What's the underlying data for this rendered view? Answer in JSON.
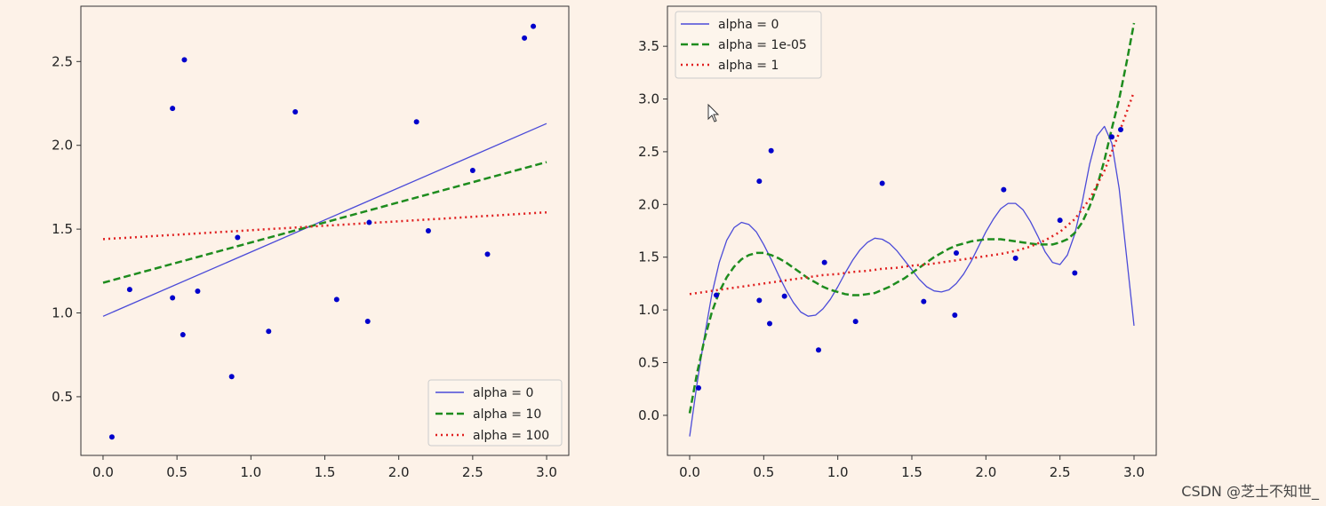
{
  "chart_data": [
    {
      "type": "line",
      "xlim": [
        -0.15,
        3.15
      ],
      "ylim": [
        0.15,
        2.83
      ],
      "xticks": [
        "0.0",
        "0.5",
        "1.0",
        "1.5",
        "2.0",
        "2.5",
        "3.0"
      ],
      "yticks": [
        "0.5",
        "1.0",
        "1.5",
        "2.0",
        "2.5"
      ],
      "legend_position": "lower-right",
      "scatter": {
        "x": [
          0.06,
          0.18,
          0.47,
          0.47,
          0.54,
          0.55,
          0.64,
          0.87,
          0.91,
          1.12,
          1.3,
          1.58,
          1.79,
          1.8,
          2.12,
          2.2,
          2.5,
          2.6,
          2.85,
          2.91
        ],
        "y": [
          0.26,
          1.14,
          2.22,
          1.09,
          0.87,
          2.51,
          1.13,
          0.62,
          1.45,
          0.89,
          2.2,
          1.08,
          0.95,
          1.54,
          2.14,
          1.49,
          1.85,
          1.35,
          2.64,
          2.71
        ],
        "color": "#0000cc"
      },
      "series": [
        {
          "name": "alpha = 0",
          "style": "solid",
          "color": "#4b4bd8",
          "x": [
            0.0,
            3.0
          ],
          "y": [
            0.98,
            2.13
          ]
        },
        {
          "name": "alpha = 10",
          "style": "dashed",
          "color": "#1e8c1e",
          "x": [
            0.0,
            3.0
          ],
          "y": [
            1.18,
            1.9
          ]
        },
        {
          "name": "alpha = 100",
          "style": "dotted",
          "color": "#e02020",
          "x": [
            0.0,
            3.0
          ],
          "y": [
            1.44,
            1.6
          ]
        }
      ]
    },
    {
      "type": "line",
      "xlim": [
        -0.15,
        3.15
      ],
      "ylim": [
        -0.38,
        3.88
      ],
      "xticks": [
        "0.0",
        "0.5",
        "1.0",
        "1.5",
        "2.0",
        "2.5",
        "3.0"
      ],
      "yticks": [
        "0.0",
        "0.5",
        "1.0",
        "1.5",
        "2.0",
        "2.5",
        "3.0",
        "3.5"
      ],
      "legend_position": "upper-left",
      "scatter": {
        "x": [
          0.06,
          0.18,
          0.47,
          0.47,
          0.54,
          0.55,
          0.64,
          0.87,
          0.91,
          1.12,
          1.3,
          1.58,
          1.79,
          1.8,
          2.12,
          2.2,
          2.5,
          2.6,
          2.85,
          2.91
        ],
        "y": [
          0.26,
          1.14,
          2.22,
          1.09,
          0.87,
          2.51,
          1.13,
          0.62,
          1.45,
          0.89,
          2.2,
          1.08,
          0.95,
          1.54,
          2.14,
          1.49,
          1.85,
          1.35,
          2.64,
          2.71
        ],
        "color": "#0000cc"
      },
      "series": [
        {
          "name": "alpha = 0",
          "style": "solid",
          "color": "#4b4bd8",
          "x": [
            0.0,
            0.05,
            0.1,
            0.15,
            0.2,
            0.25,
            0.3,
            0.35,
            0.4,
            0.45,
            0.5,
            0.55,
            0.6,
            0.65,
            0.7,
            0.75,
            0.8,
            0.85,
            0.9,
            0.95,
            1.0,
            1.05,
            1.1,
            1.15,
            1.2,
            1.25,
            1.3,
            1.35,
            1.4,
            1.45,
            1.5,
            1.55,
            1.6,
            1.65,
            1.7,
            1.75,
            1.8,
            1.85,
            1.9,
            1.95,
            2.0,
            2.05,
            2.1,
            2.15,
            2.2,
            2.25,
            2.3,
            2.35,
            2.4,
            2.45,
            2.5,
            2.55,
            2.6,
            2.65,
            2.7,
            2.75,
            2.8,
            2.85,
            2.9,
            2.95,
            3.0
          ],
          "y": [
            -0.2,
            0.3,
            0.75,
            1.15,
            1.45,
            1.66,
            1.78,
            1.83,
            1.81,
            1.74,
            1.62,
            1.48,
            1.33,
            1.19,
            1.07,
            0.98,
            0.94,
            0.95,
            1.01,
            1.1,
            1.22,
            1.35,
            1.47,
            1.57,
            1.64,
            1.68,
            1.67,
            1.63,
            1.56,
            1.47,
            1.38,
            1.29,
            1.22,
            1.18,
            1.17,
            1.19,
            1.25,
            1.34,
            1.46,
            1.6,
            1.74,
            1.86,
            1.96,
            2.01,
            2.01,
            1.95,
            1.84,
            1.7,
            1.55,
            1.45,
            1.43,
            1.52,
            1.72,
            2.02,
            2.38,
            2.65,
            2.74,
            2.58,
            2.15,
            1.5,
            0.85
          ]
        },
        {
          "name": "alpha = 1e-05",
          "style": "dashed",
          "color": "#1e8c1e",
          "x": [
            0.0,
            0.05,
            0.1,
            0.15,
            0.2,
            0.25,
            0.3,
            0.35,
            0.4,
            0.45,
            0.5,
            0.55,
            0.6,
            0.65,
            0.7,
            0.75,
            0.8,
            0.85,
            0.9,
            0.95,
            1.0,
            1.05,
            1.1,
            1.15,
            1.2,
            1.25,
            1.3,
            1.35,
            1.4,
            1.45,
            1.5,
            1.55,
            1.6,
            1.65,
            1.7,
            1.75,
            1.8,
            1.85,
            1.9,
            1.95,
            2.0,
            2.05,
            2.1,
            2.15,
            2.2,
            2.25,
            2.3,
            2.35,
            2.4,
            2.45,
            2.5,
            2.55,
            2.6,
            2.65,
            2.7,
            2.75,
            2.8,
            2.85,
            2.9,
            2.95,
            3.0
          ],
          "y": [
            0.02,
            0.4,
            0.72,
            0.98,
            1.17,
            1.31,
            1.41,
            1.48,
            1.52,
            1.54,
            1.54,
            1.52,
            1.49,
            1.45,
            1.4,
            1.35,
            1.3,
            1.26,
            1.22,
            1.19,
            1.17,
            1.15,
            1.14,
            1.14,
            1.15,
            1.16,
            1.19,
            1.22,
            1.26,
            1.3,
            1.35,
            1.4,
            1.45,
            1.5,
            1.54,
            1.58,
            1.61,
            1.63,
            1.65,
            1.66,
            1.67,
            1.67,
            1.67,
            1.66,
            1.65,
            1.64,
            1.63,
            1.62,
            1.62,
            1.62,
            1.64,
            1.67,
            1.73,
            1.83,
            1.98,
            2.17,
            2.42,
            2.72,
            3.0,
            3.35,
            3.72
          ]
        },
        {
          "name": "alpha = 1",
          "style": "dotted",
          "color": "#e02020",
          "x": [
            0.0,
            0.1,
            0.2,
            0.3,
            0.4,
            0.5,
            0.6,
            0.7,
            0.8,
            0.9,
            1.0,
            1.1,
            1.2,
            1.3,
            1.4,
            1.5,
            1.6,
            1.7,
            1.8,
            1.9,
            2.0,
            2.1,
            2.2,
            2.3,
            2.4,
            2.5,
            2.6,
            2.7,
            2.8,
            2.9,
            3.0
          ],
          "y": [
            1.15,
            1.17,
            1.19,
            1.21,
            1.23,
            1.25,
            1.27,
            1.29,
            1.31,
            1.33,
            1.34,
            1.36,
            1.37,
            1.39,
            1.4,
            1.42,
            1.43,
            1.45,
            1.47,
            1.49,
            1.51,
            1.53,
            1.56,
            1.6,
            1.66,
            1.74,
            1.86,
            2.05,
            2.32,
            2.68,
            3.07
          ]
        }
      ]
    }
  ],
  "watermark": "CSDN @芝士不知世_"
}
